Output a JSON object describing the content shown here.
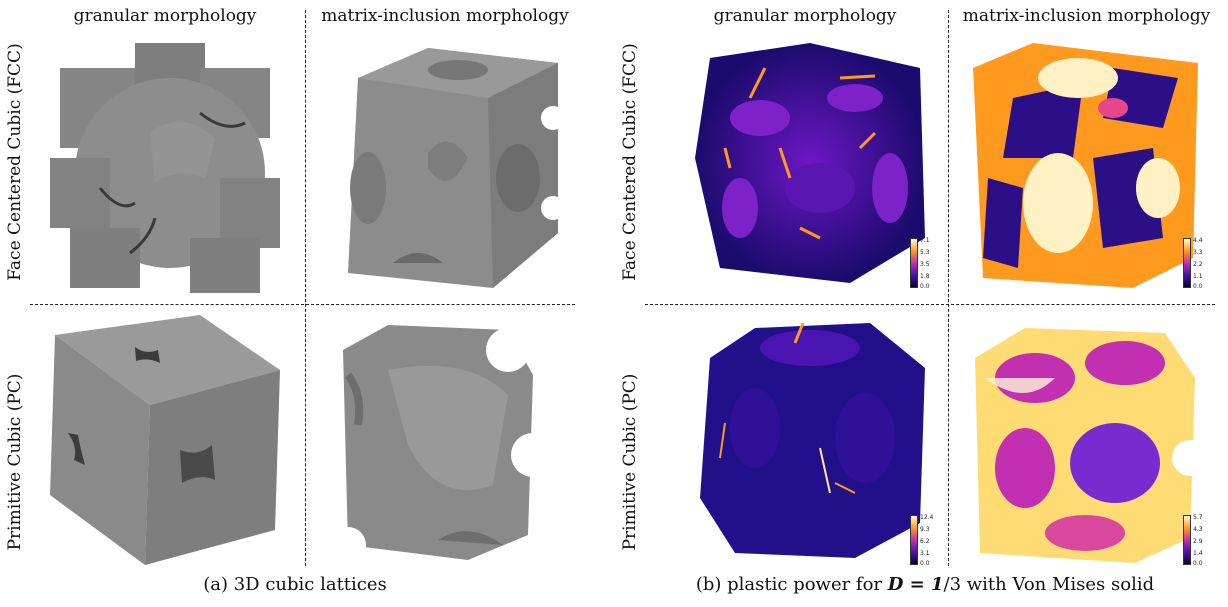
{
  "panel_a": {
    "col_headers": [
      "granular morphology",
      "matrix-inclusion morphology"
    ],
    "row_headers": [
      "Face Centered Cubic (FCC)",
      "Primitive Cubic (PC)"
    ],
    "caption": "(a) 3D cubic lattices"
  },
  "panel_b": {
    "col_headers": [
      "granular morphology",
      "matrix-inclusion morphology"
    ],
    "row_headers": [
      "Face Centered Cubic (FCC)",
      "Primitive Cubic (PC)"
    ],
    "caption_prefix": "(b) plastic power for",
    "caption_math": "D = 1",
    "caption_suffix": "/3 with Von Mises solid",
    "colorbars": {
      "fcc_granular": [
        "7.1",
        "5.3",
        "3.5",
        "1.8",
        "0.0"
      ],
      "fcc_matrix": [
        "4.4",
        "3.3",
        "2.2",
        "1.1",
        "0.0"
      ],
      "pc_granular": [
        "12.4",
        "9.3",
        "6.2",
        "3.1",
        "0.0"
      ],
      "pc_matrix": [
        "5.7",
        "4.3",
        "2.9",
        "1.4",
        "0.0"
      ]
    }
  },
  "colors": {
    "grey_solid": "#8a8a8a",
    "plasma_dark": "#1a0a6e",
    "plasma_mid": "#c22fb0",
    "plasma_hot": "#ff9a1f",
    "plasma_max": "#fffbe0"
  }
}
